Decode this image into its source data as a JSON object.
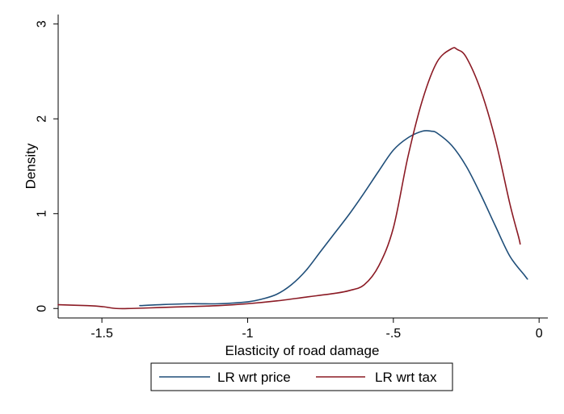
{
  "chart_data": {
    "type": "line",
    "xlabel": "Elasticity of road damage",
    "ylabel": "Density",
    "xlim": [
      -1.65,
      0.03
    ],
    "ylim": [
      -0.1,
      3.1
    ],
    "xticks": [
      -1.5,
      -1,
      -0.5,
      0
    ],
    "xtick_labels": [
      "-1.5",
      "-1",
      "-.5",
      "0"
    ],
    "yticks": [
      0,
      1,
      2,
      3
    ],
    "ytick_labels": [
      "0",
      "1",
      "2",
      "3"
    ],
    "grid": false,
    "legend_position": "bottom",
    "series": [
      {
        "name": "LR wrt price",
        "color": "#1f4e79",
        "x": [
          -1.37,
          -1.3,
          -1.2,
          -1.1,
          -1.0,
          -0.95,
          -0.9,
          -0.85,
          -0.8,
          -0.75,
          -0.7,
          -0.65,
          -0.6,
          -0.55,
          -0.5,
          -0.45,
          -0.4,
          -0.37,
          -0.35,
          -0.3,
          -0.25,
          -0.2,
          -0.15,
          -0.1,
          -0.05,
          -0.04
        ],
        "y": [
          0.03,
          0.04,
          0.05,
          0.05,
          0.07,
          0.1,
          0.15,
          0.25,
          0.4,
          0.6,
          0.8,
          1.0,
          1.22,
          1.45,
          1.67,
          1.8,
          1.87,
          1.87,
          1.85,
          1.72,
          1.5,
          1.2,
          0.87,
          0.55,
          0.35,
          0.31
        ]
      },
      {
        "name": "LR wrt tax",
        "color": "#8b1a24",
        "x": [
          -1.65,
          -1.55,
          -1.5,
          -1.45,
          -1.4,
          -1.3,
          -1.2,
          -1.1,
          -1.0,
          -0.9,
          -0.8,
          -0.7,
          -0.65,
          -0.6,
          -0.55,
          -0.5,
          -0.45,
          -0.4,
          -0.35,
          -0.3,
          -0.28,
          -0.25,
          -0.2,
          -0.15,
          -0.1,
          -0.07,
          -0.065
        ],
        "y": [
          0.04,
          0.03,
          0.02,
          0.0,
          0.0,
          0.01,
          0.02,
          0.03,
          0.05,
          0.08,
          0.12,
          0.16,
          0.19,
          0.25,
          0.45,
          0.85,
          1.6,
          2.2,
          2.6,
          2.74,
          2.73,
          2.65,
          2.3,
          1.78,
          1.1,
          0.75,
          0.68
        ]
      }
    ]
  }
}
